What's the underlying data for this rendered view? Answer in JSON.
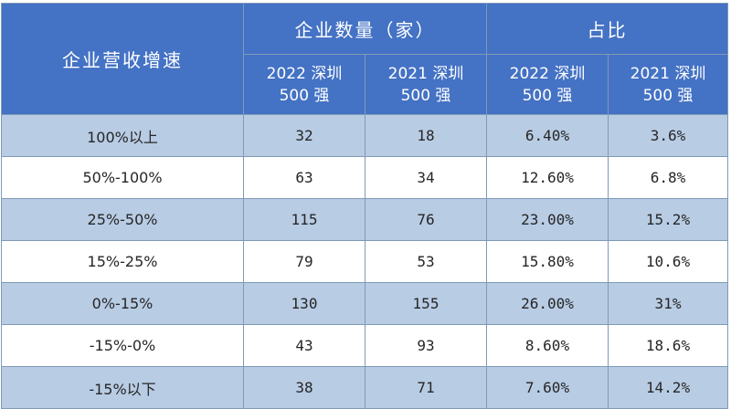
{
  "table": {
    "row_header": "企业营收增速",
    "group_count": "企业数量（家）",
    "group_share": "占比",
    "sub_headers": [
      {
        "line1": "2022 深圳",
        "line2": "500 强"
      },
      {
        "line1": "2021 深圳",
        "line2": "500 强"
      },
      {
        "line1": "2022 深圳",
        "line2": "500 强"
      },
      {
        "line1": "2021 深圳",
        "line2": "500 强"
      }
    ],
    "rows": [
      {
        "range": "100%以上",
        "count_2022": "32",
        "count_2021": "18",
        "share_2022": "6.40%",
        "share_2021": "3.6%"
      },
      {
        "range": "50%-100%",
        "count_2022": "63",
        "count_2021": "34",
        "share_2022": "12.60%",
        "share_2021": "6.8%"
      },
      {
        "range": "25%-50%",
        "count_2022": "115",
        "count_2021": "76",
        "share_2022": "23.00%",
        "share_2021": "15.2%"
      },
      {
        "range": "15%-25%",
        "count_2022": "79",
        "count_2021": "53",
        "share_2022": "15.80%",
        "share_2021": "10.6%"
      },
      {
        "range": "0%-15%",
        "count_2022": "130",
        "count_2021": "155",
        "share_2022": "26.00%",
        "share_2021": "31%"
      },
      {
        "range": "-15%-0%",
        "count_2022": "43",
        "count_2021": "93",
        "share_2022": "8.60%",
        "share_2021": "18.6%"
      },
      {
        "range": "-15%以下",
        "count_2022": "38",
        "count_2021": "71",
        "share_2022": "7.60%",
        "share_2021": "14.2%"
      }
    ]
  },
  "colors": {
    "header_bg": "#4472c4",
    "band_dark": "#b8cce4",
    "band_light": "#ffffff",
    "border": "#7f9ab7"
  }
}
